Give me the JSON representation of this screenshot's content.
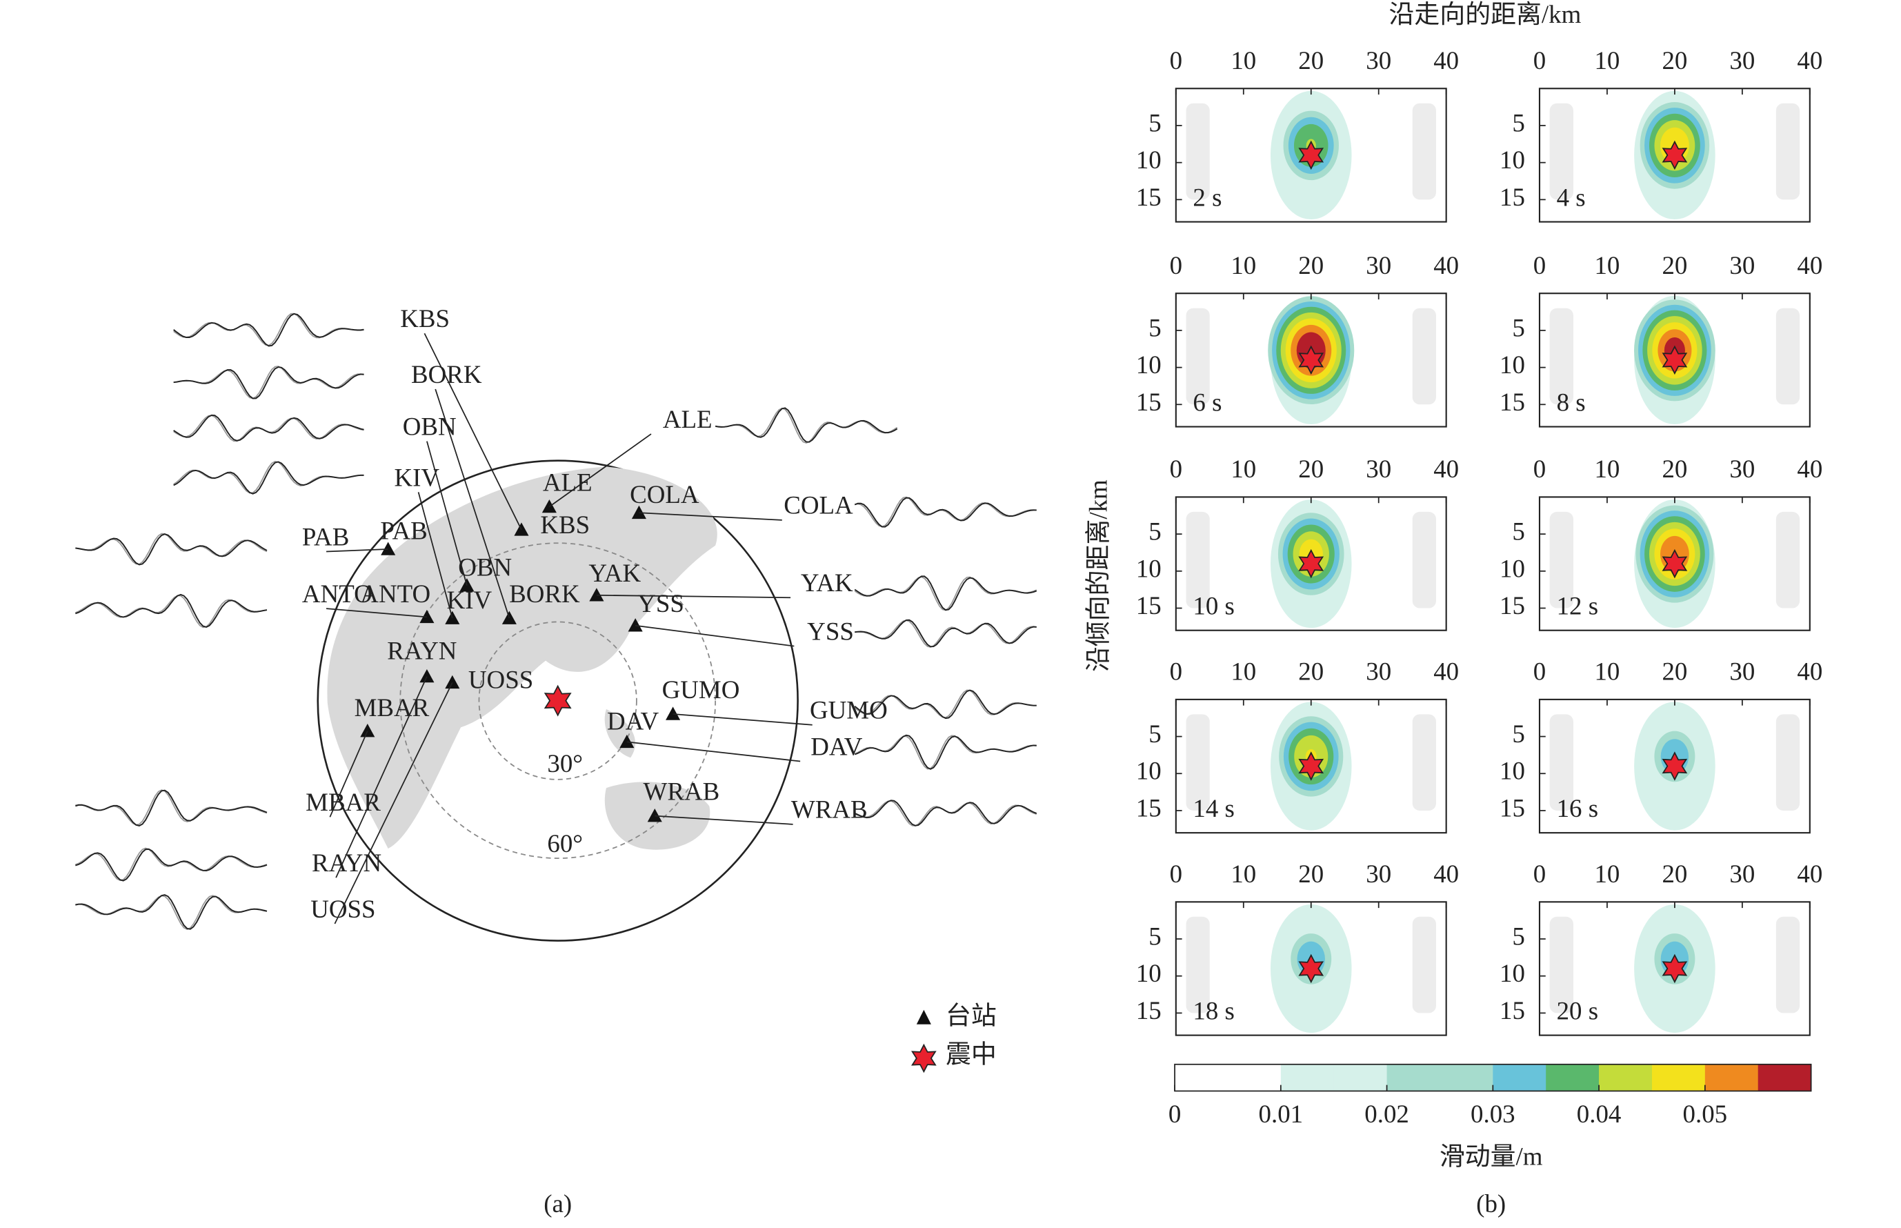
{
  "panel_a": {
    "stations": [
      "ALE",
      "KBS",
      "COLA",
      "PAB",
      "OBN",
      "YAK",
      "ANTO",
      "KIV",
      "BORK",
      "YSS",
      "RAYN",
      "UOSS",
      "MBAR",
      "GUMO",
      "DAV",
      "WRAB"
    ],
    "waveform_labels": [
      "KBS",
      "BORK",
      "OBN",
      "KIV",
      "PAB",
      "ANTO",
      "MBAR",
      "RAYN",
      "UOSS",
      "ALE",
      "COLA",
      "YAK",
      "YSS",
      "GUMO",
      "DAV",
      "WRAB"
    ],
    "ring_labels": [
      "30°",
      "60°"
    ],
    "legend": {
      "station": "台站",
      "epicenter": "震中"
    },
    "caption": "(a)"
  },
  "panel_b": {
    "x_axis_title": "沿走向的距离/km",
    "y_axis_title": "沿倾向的距离/km",
    "xlim": [
      0,
      40
    ],
    "xticks": [
      0,
      10,
      20,
      30,
      40
    ],
    "ylim": [
      0,
      18
    ],
    "yticks": [
      5,
      10,
      15
    ],
    "hypocenter": {
      "x": 20,
      "y": 9
    },
    "snapshots": [
      {
        "label": "2 s",
        "peak_slip": 0.04
      },
      {
        "label": "4 s",
        "peak_slip": 0.048
      },
      {
        "label": "6 s",
        "peak_slip": 0.058
      },
      {
        "label": "8 s",
        "peak_slip": 0.055
      },
      {
        "label": "10 s",
        "peak_slip": 0.046
      },
      {
        "label": "12 s",
        "peak_slip": 0.053
      },
      {
        "label": "14 s",
        "peak_slip": 0.045
      },
      {
        "label": "16 s",
        "peak_slip": 0.032
      },
      {
        "label": "18 s",
        "peak_slip": 0.032
      },
      {
        "label": "20 s",
        "peak_slip": 0.032
      }
    ],
    "colorbar": {
      "title": "滑动量/m",
      "lim": [
        0,
        0.06
      ],
      "ticks": [
        0,
        0.01,
        0.02,
        0.03,
        0.04,
        0.05
      ],
      "colors": [
        "#ffffff",
        "#ffffff",
        "#d6f1ea",
        "#d6f1ea",
        "#a6dccd",
        "#a6dccd",
        "#68c3da",
        "#5ab86c",
        "#c4dc3a",
        "#f3e11c",
        "#ef8a1f",
        "#b41e2a"
      ]
    },
    "caption": "(b)"
  }
}
